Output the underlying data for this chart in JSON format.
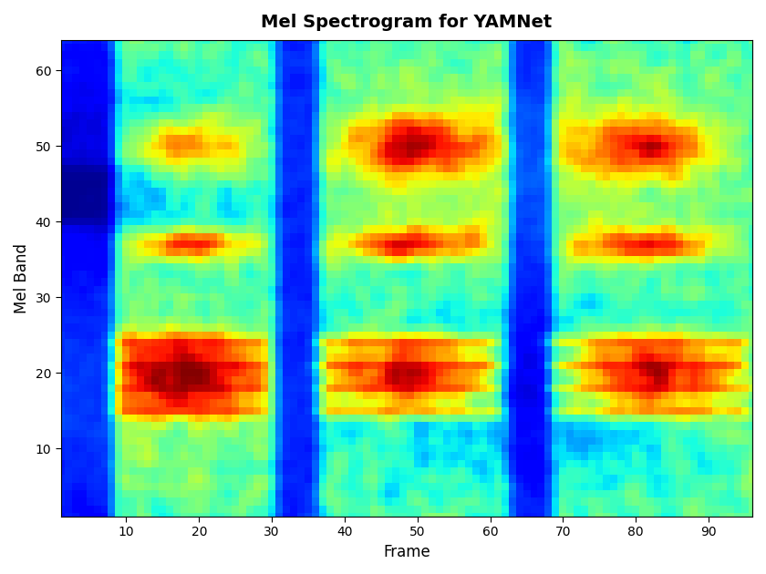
{
  "title": "Mel Spectrogram for YAMNet",
  "xlabel": "Frame",
  "ylabel": "Mel Band",
  "n_frames": 96,
  "n_mels": 64,
  "xlim": [
    1,
    96
  ],
  "ylim": [
    1,
    64
  ],
  "xticks": [
    10,
    20,
    30,
    40,
    50,
    60,
    70,
    80,
    90
  ],
  "yticks": [
    10,
    20,
    30,
    40,
    50,
    60
  ],
  "colormap": "jet",
  "title_fontsize": 14,
  "label_fontsize": 12,
  "background": "#ffffff"
}
